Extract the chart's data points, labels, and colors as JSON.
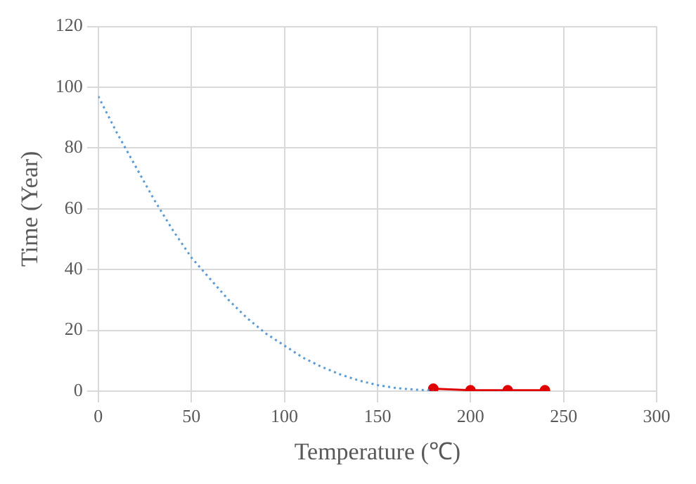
{
  "chart_data": {
    "type": "line",
    "xlabel": "Temperature (℃)",
    "ylabel": "Time (Year)",
    "xlim": [
      0,
      300
    ],
    "xticks": [
      0,
      50,
      100,
      150,
      200,
      250,
      300
    ],
    "ylim": [
      0,
      120
    ],
    "yticks": [
      0,
      20,
      40,
      60,
      80,
      100,
      120
    ],
    "grid": true,
    "legend": false,
    "series": [
      {
        "color": "#5b9bd5",
        "line_style": "dotted",
        "marker": "none",
        "x": [
          0,
          10,
          20,
          30,
          40,
          50,
          60,
          70,
          80,
          90,
          100,
          110,
          120,
          130,
          140,
          150,
          160,
          170,
          180
        ],
        "values": [
          97,
          85,
          74,
          63,
          53,
          44,
          37,
          30,
          24,
          19,
          15,
          11,
          8,
          5.5,
          3.5,
          2,
          1,
          0.5,
          0.2
        ]
      },
      {
        "color": "#e00000",
        "line_style": "solid",
        "marker": "circle",
        "x": [
          180,
          200,
          220,
          240
        ],
        "values": [
          0.8,
          0.3,
          0.3,
          0.3
        ]
      }
    ]
  }
}
